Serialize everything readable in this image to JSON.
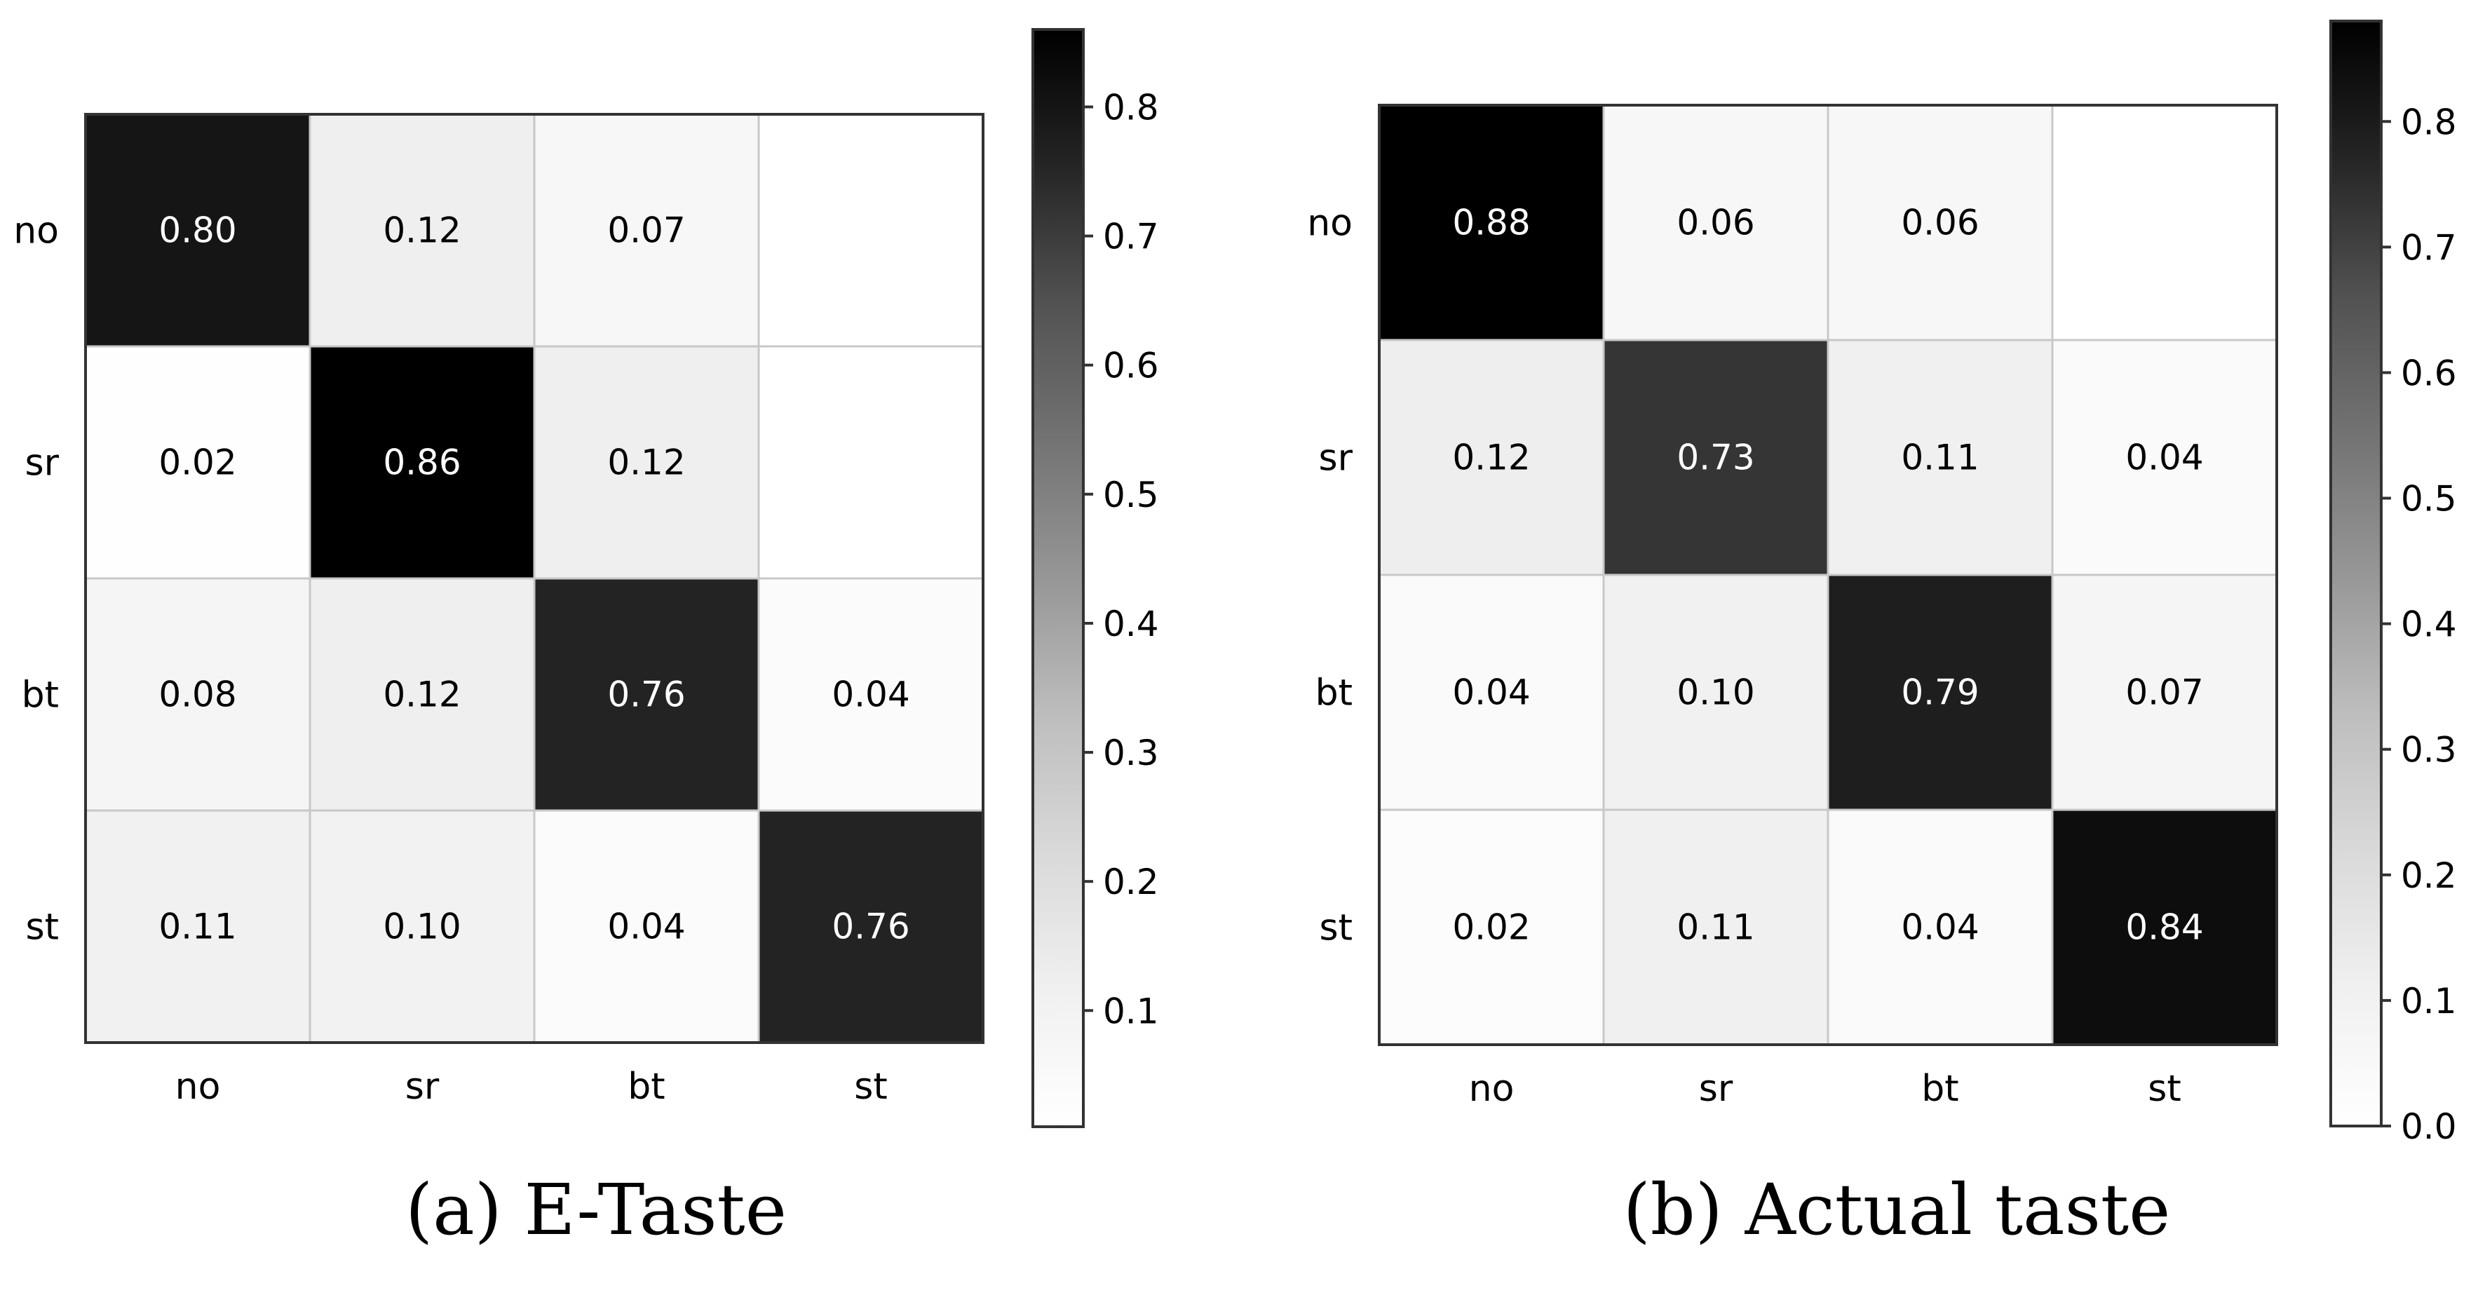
{
  "chart_data": [
    {
      "type": "heatmap",
      "caption": "(a) E-Taste",
      "x_labels": [
        "no",
        "sr",
        "bt",
        "st"
      ],
      "y_labels": [
        "no",
        "sr",
        "bt",
        "st"
      ],
      "values": [
        [
          0.8,
          0.12,
          0.07,
          null
        ],
        [
          0.02,
          0.86,
          0.12,
          null
        ],
        [
          0.08,
          0.12,
          0.76,
          0.04
        ],
        [
          0.11,
          0.1,
          0.04,
          0.76
        ]
      ],
      "cell_labels": [
        [
          "0.80",
          "0.12",
          "0.07",
          ""
        ],
        [
          "0.02",
          "0.86",
          "0.12",
          ""
        ],
        [
          "0.08",
          "0.12",
          "0.76",
          "0.04"
        ],
        [
          "0.11",
          "0.10",
          "0.04",
          "0.76"
        ]
      ],
      "colorbar": {
        "min": 0.01,
        "max": 0.86,
        "ticks": [
          0.1,
          0.2,
          0.3,
          0.4,
          0.5,
          0.6,
          0.7,
          0.8
        ],
        "tick_labels": [
          "0.1",
          "0.2",
          "0.3",
          "0.4",
          "0.5",
          "0.6",
          "0.7",
          "0.8"
        ]
      },
      "colormap": "Greys"
    },
    {
      "type": "heatmap",
      "caption": "(b) Actual taste",
      "x_labels": [
        "no",
        "sr",
        "bt",
        "st"
      ],
      "y_labels": [
        "no",
        "sr",
        "bt",
        "st"
      ],
      "values": [
        [
          0.88,
          0.06,
          0.06,
          null
        ],
        [
          0.12,
          0.73,
          0.11,
          0.04
        ],
        [
          0.04,
          0.1,
          0.79,
          0.07
        ],
        [
          0.02,
          0.11,
          0.04,
          0.84
        ]
      ],
      "cell_labels": [
        [
          "0.88",
          "0.06",
          "0.06",
          ""
        ],
        [
          "0.12",
          "0.73",
          "0.11",
          "0.04"
        ],
        [
          "0.04",
          "0.10",
          "0.79",
          "0.07"
        ],
        [
          "0.02",
          "0.11",
          "0.04",
          "0.84"
        ]
      ],
      "colorbar": {
        "min": 0.0,
        "max": 0.88,
        "ticks": [
          0.0,
          0.1,
          0.2,
          0.3,
          0.4,
          0.5,
          0.6,
          0.7,
          0.8
        ],
        "tick_labels": [
          "0.0",
          "0.1",
          "0.2",
          "0.3",
          "0.4",
          "0.5",
          "0.6",
          "0.7",
          "0.8"
        ]
      },
      "colormap": "Greys"
    }
  ]
}
